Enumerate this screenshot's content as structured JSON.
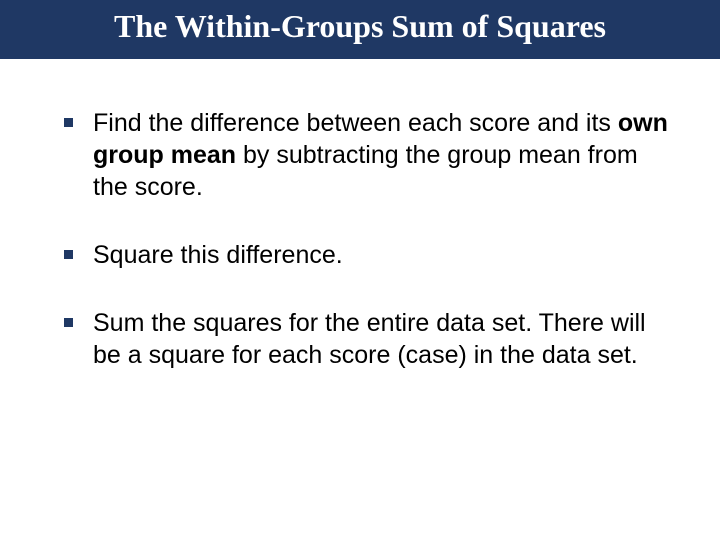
{
  "title": "The Within-Groups Sum of Squares",
  "bullets": [
    {
      "pre": "Find the difference between each score and its ",
      "bold": "own group mean",
      "post": " by subtracting the group mean from the score."
    },
    {
      "pre": "Square this difference.",
      "bold": "",
      "post": ""
    },
    {
      "pre": "Sum the squares for the entire data set. There will be a square for each score (case) in the data set.",
      "bold": "",
      "post": ""
    }
  ],
  "colors": {
    "header_bg": "#1f3864",
    "text": "#000000",
    "bullet": "#1f3864"
  }
}
